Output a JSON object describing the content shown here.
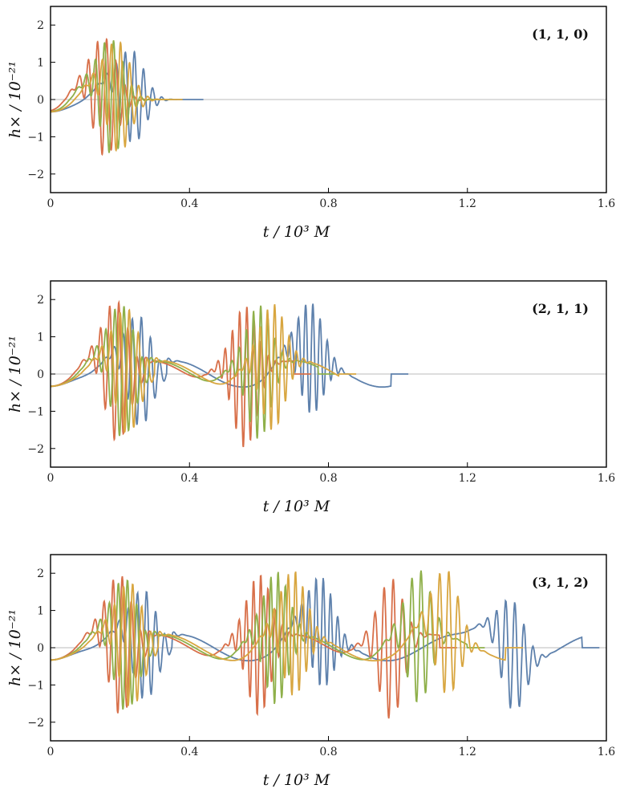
{
  "colors": {
    "frame": "#000000",
    "zero_line": "#bbbbbb",
    "series": [
      "#5e81ac",
      "#d8704a",
      "#8fb04a",
      "#d8a640"
    ]
  },
  "axis_text": {
    "x_title": "t / 10³ M",
    "y_title": "h× / 10⁻²¹"
  },
  "chart_data": [
    {
      "type": "line",
      "panel_label": "(1, 1, 0)",
      "xlim": [
        0,
        1.6
      ],
      "ylim": [
        -2.5,
        2.5
      ],
      "x_ticks": [
        "0",
        "0.4",
        "0.8",
        "1.2",
        "1.6"
      ],
      "y_ticks": [
        "−2",
        "−1",
        "0",
        "1",
        "2"
      ],
      "xlabel": "t / 10³ M",
      "ylabel": "h× / 10⁻²¹",
      "grid": false,
      "series": [
        {
          "color": "#5e81ac",
          "t_end": 0.44,
          "bursts": [
            {
              "t": 0.235,
              "amp": 1.25
            }
          ]
        },
        {
          "color": "#d8704a",
          "t_end": 0.32,
          "bursts": [
            {
              "t": 0.155,
              "amp": 1.6
            }
          ]
        },
        {
          "color": "#8fb04a",
          "t_end": 0.35,
          "bursts": [
            {
              "t": 0.175,
              "amp": 1.55
            }
          ]
        },
        {
          "color": "#d8a640",
          "t_end": 0.38,
          "bursts": [
            {
              "t": 0.195,
              "amp": 1.5
            }
          ]
        }
      ]
    },
    {
      "type": "line",
      "panel_label": "(2, 1, 1)",
      "xlim": [
        0,
        1.6
      ],
      "ylim": [
        -2.5,
        2.5
      ],
      "x_ticks": [
        "0",
        "0.4",
        "0.8",
        "1.2",
        "1.6"
      ],
      "y_ticks": [
        "−2",
        "−1",
        "0",
        "1",
        "2"
      ],
      "xlabel": "t / 10³ M",
      "ylabel": "h× / 10⁻²¹",
      "grid": false,
      "series": [
        {
          "color": "#5e81ac",
          "t_end": 1.03,
          "bursts": [
            {
              "t": 0.255,
              "amp": 1.5
            },
            {
              "t": 0.75,
              "amp": 1.5
            }
          ]
        },
        {
          "color": "#d8704a",
          "t_end": 0.75,
          "bursts": [
            {
              "t": 0.19,
              "amp": 1.9
            },
            {
              "t": 0.56,
              "amp": 1.9
            }
          ]
        },
        {
          "color": "#8fb04a",
          "t_end": 0.82,
          "bursts": [
            {
              "t": 0.205,
              "amp": 1.8
            },
            {
              "t": 0.6,
              "amp": 1.8
            }
          ]
        },
        {
          "color": "#d8a640",
          "t_end": 0.88,
          "bursts": [
            {
              "t": 0.22,
              "amp": 1.7
            },
            {
              "t": 0.64,
              "amp": 1.7
            }
          ]
        }
      ]
    },
    {
      "type": "line",
      "panel_label": "(3, 1, 2)",
      "xlim": [
        0,
        1.6
      ],
      "ylim": [
        -2.5,
        2.5
      ],
      "x_ticks": [
        "0",
        "0.4",
        "0.8",
        "1.2",
        "1.6"
      ],
      "y_ticks": [
        "−2",
        "−1",
        "0",
        "1",
        "2"
      ],
      "xlabel": "t / 10³ M",
      "ylabel": "h× / 10⁻²¹",
      "grid": false,
      "series": [
        {
          "color": "#5e81ac",
          "t_end": 1.58,
          "bursts": [
            {
              "t": 0.27,
              "amp": 1.5
            },
            {
              "t": 0.78,
              "amp": 1.5
            },
            {
              "t": 1.33,
              "amp": 1.5
            }
          ]
        },
        {
          "color": "#d8704a",
          "t_end": 1.17,
          "bursts": [
            {
              "t": 0.2,
              "amp": 1.9
            },
            {
              "t": 0.6,
              "amp": 1.9
            },
            {
              "t": 0.98,
              "amp": 1.9
            }
          ]
        },
        {
          "color": "#8fb04a",
          "t_end": 1.25,
          "bursts": [
            {
              "t": 0.215,
              "amp": 1.8
            },
            {
              "t": 0.65,
              "amp": 1.8
            },
            {
              "t": 1.06,
              "amp": 1.8
            }
          ]
        },
        {
          "color": "#d8a640",
          "t_end": 1.36,
          "bursts": [
            {
              "t": 0.23,
              "amp": 1.7
            },
            {
              "t": 0.7,
              "amp": 1.7
            },
            {
              "t": 1.14,
              "amp": 1.7
            }
          ]
        }
      ]
    }
  ]
}
